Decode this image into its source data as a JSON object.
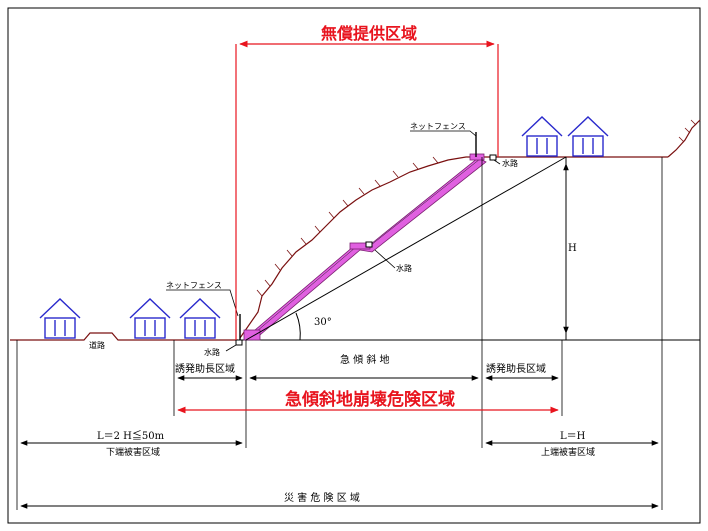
{
  "colors": {
    "red": "#e8141e",
    "ground": "#7a1010",
    "slope_fill": "#e060e0",
    "house": "#2a2acc",
    "line": "#000000"
  },
  "titles": {
    "free_provision": "無償提供区域",
    "hazard_zone": "急傾斜地崩壊危険区域"
  },
  "labels": {
    "net_fence_top": "ネットフェンス",
    "net_fence_left": "ネットフェンス",
    "waterway_top": "水路",
    "waterway_mid": "水路",
    "waterway_bottom": "水路",
    "road": "道路",
    "height": "H",
    "angle": "30°",
    "induced_left": "誘発助長区域",
    "steep_slope": "急 傾 斜 地",
    "induced_right": "誘発助長区域",
    "lower_distance": "L＝2 H≦50m",
    "lower_zone": "下端被害区域",
    "upper_distance": "L＝H",
    "upper_zone": "上端被害区域",
    "disaster_zone": "災 害 危 険 区 域"
  },
  "icons": [
    "house-icon",
    "house-icon",
    "house-icon",
    "house-icon",
    "house-icon"
  ]
}
